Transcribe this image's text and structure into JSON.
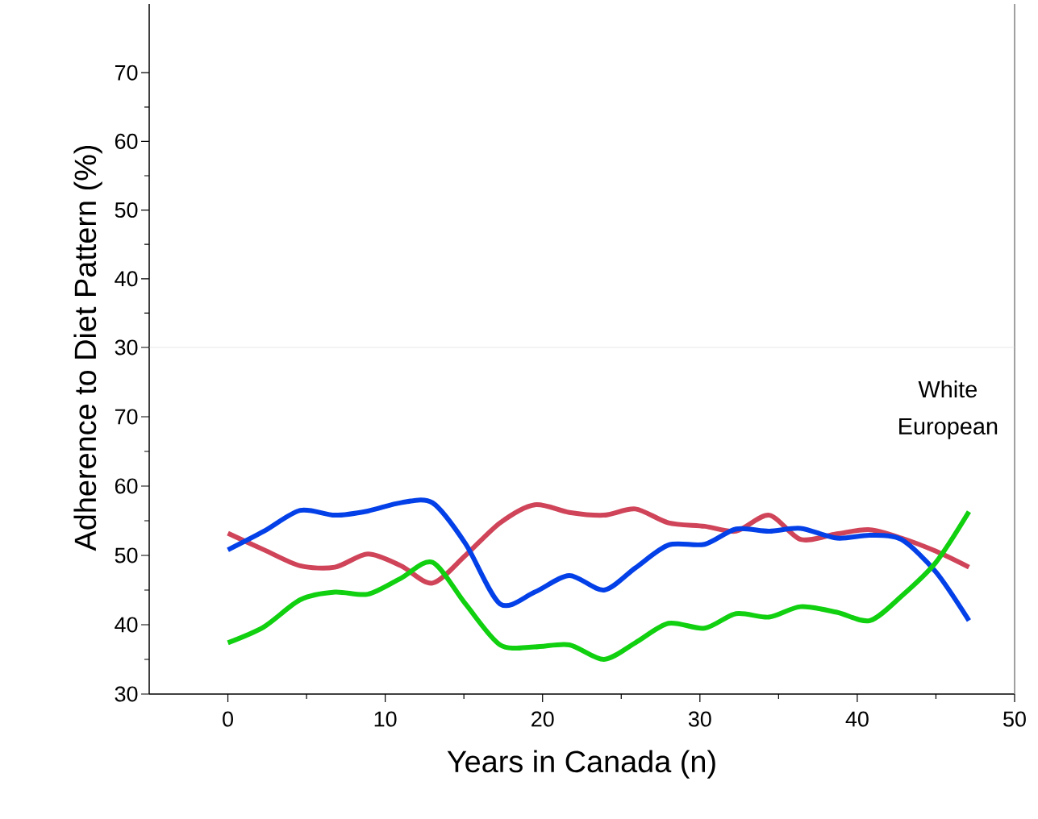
{
  "chart_data": [
    {
      "type": "line",
      "ylabel": "Adherence to Diet Pattern (%)",
      "xlim": [
        -5,
        50
      ],
      "ylim": [
        30,
        80
      ],
      "yticks": [
        30,
        40,
        50,
        60,
        70
      ],
      "tick_labels": "y"
    },
    {
      "type": "line",
      "xlabel": "Years in Canada (n)",
      "annotations": [
        "White European"
      ],
      "xlim": [
        -5,
        50
      ],
      "ylim": [
        30,
        80
      ],
      "xticks": [
        0,
        10,
        20,
        30,
        40,
        50
      ],
      "yticks": [
        30,
        40,
        50,
        60,
        70
      ],
      "marker": "none",
      "x": [
        0,
        2.3,
        4.6,
        6.8,
        8.9,
        11,
        13,
        15.1,
        17.3,
        19.5,
        21.7,
        23.9,
        25.9,
        28,
        30.3,
        32.3,
        34.4,
        36.4,
        38.7,
        40.8,
        42.8,
        45,
        47.1
      ],
      "series": [
        {
          "color": "#d04459",
          "values": [
            53.2,
            50.8,
            48.5,
            48.3,
            50.2,
            48.5,
            46.0,
            50.0,
            54.7,
            57.3,
            56.2,
            55.8,
            56.7,
            54.7,
            54.2,
            53.5,
            55.8,
            52.3,
            53.1,
            53.7,
            52.5,
            50.6,
            48.3
          ]
        },
        {
          "color": "#0440e8",
          "values": [
            50.8,
            53.5,
            56.5,
            55.8,
            56.4,
            57.6,
            57.6,
            51.7,
            43.0,
            44.7,
            47.1,
            45.0,
            48.2,
            51.5,
            51.6,
            53.8,
            53.5,
            53.9,
            52.5,
            52.9,
            52.3,
            47.6,
            40.6
          ]
        },
        {
          "color": "#10d010",
          "values": [
            37.4,
            39.7,
            43.6,
            44.7,
            44.4,
            46.7,
            49.0,
            43.0,
            37.1,
            36.8,
            37.1,
            35.0,
            37.4,
            40.2,
            39.5,
            41.6,
            41.1,
            42.6,
            41.8,
            40.6,
            44.1,
            49.0,
            56.3
          ]
        }
      ]
    }
  ]
}
